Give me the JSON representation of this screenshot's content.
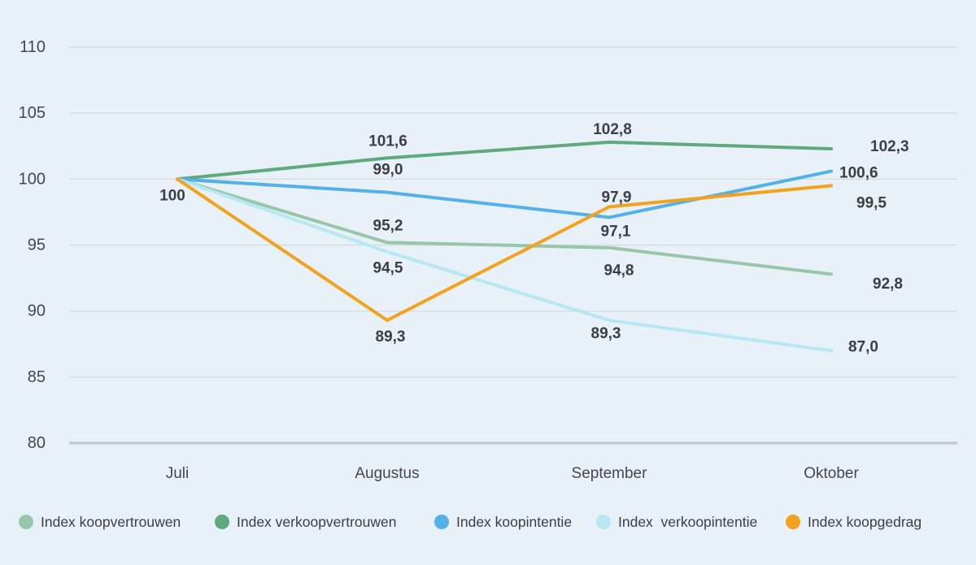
{
  "legend": {
    "items": [
      {
        "label": "Index koopvertrouwen",
        "color": "#97c7a8"
      },
      {
        "label": "Index verkoopvertrouwen",
        "color": "#5fa97e"
      },
      {
        "label": "Index koopintentie",
        "color": "#54b0e9"
      },
      {
        "label": "Index  verkoopintentie",
        "color": "#b5e8f2"
      },
      {
        "label": "Index koopgedrag",
        "color": "#f4a11d"
      }
    ]
  },
  "chart_data": {
    "type": "line",
    "title": "",
    "xlabel": "",
    "ylabel": "",
    "categories": [
      "Juli",
      "Augustus",
      "September",
      "Oktober"
    ],
    "y_ticks": [
      110,
      105,
      100,
      95,
      90,
      85,
      80
    ],
    "ylim": [
      80,
      110
    ],
    "grid": true,
    "legend_position": "bottom",
    "start_label": "100",
    "series": [
      {
        "name": "Index koopvertrouwen",
        "color": "#97c7a8",
        "values": [
          100,
          95.2,
          94.8,
          92.8
        ],
        "point_labels": [
          "",
          "95,2",
          "94,8",
          "92,8"
        ]
      },
      {
        "name": "Index verkoopvertrouwen",
        "color": "#5fa97e",
        "values": [
          100,
          101.6,
          102.8,
          102.3
        ],
        "point_labels": [
          "",
          "101,6",
          "102,8",
          "102,3"
        ]
      },
      {
        "name": "Index koopintentie",
        "color": "#54b0e9",
        "values": [
          100,
          99.0,
          97.1,
          100.6
        ],
        "point_labels": [
          "",
          "99,0",
          "97,1",
          "100,6"
        ]
      },
      {
        "name": "Index  verkoopintentie",
        "color": "#b5e8f2",
        "values": [
          100,
          94.5,
          89.3,
          87.0
        ],
        "point_labels": [
          "",
          "94,5",
          "89,3",
          "87,0"
        ]
      },
      {
        "name": "Index koopgedrag",
        "color": "#f4a11d",
        "values": [
          100,
          89.3,
          97.9,
          99.5
        ],
        "point_labels": [
          "",
          "89,3",
          "97,9",
          "99,5"
        ]
      }
    ],
    "styles": {
      "background": "#e7f1f7",
      "grid_color": "#d6dcdf",
      "baseline_color": "#c7cbcb",
      "tick_text_color": "#43484b",
      "data_label_color": "#3a3f42"
    }
  }
}
